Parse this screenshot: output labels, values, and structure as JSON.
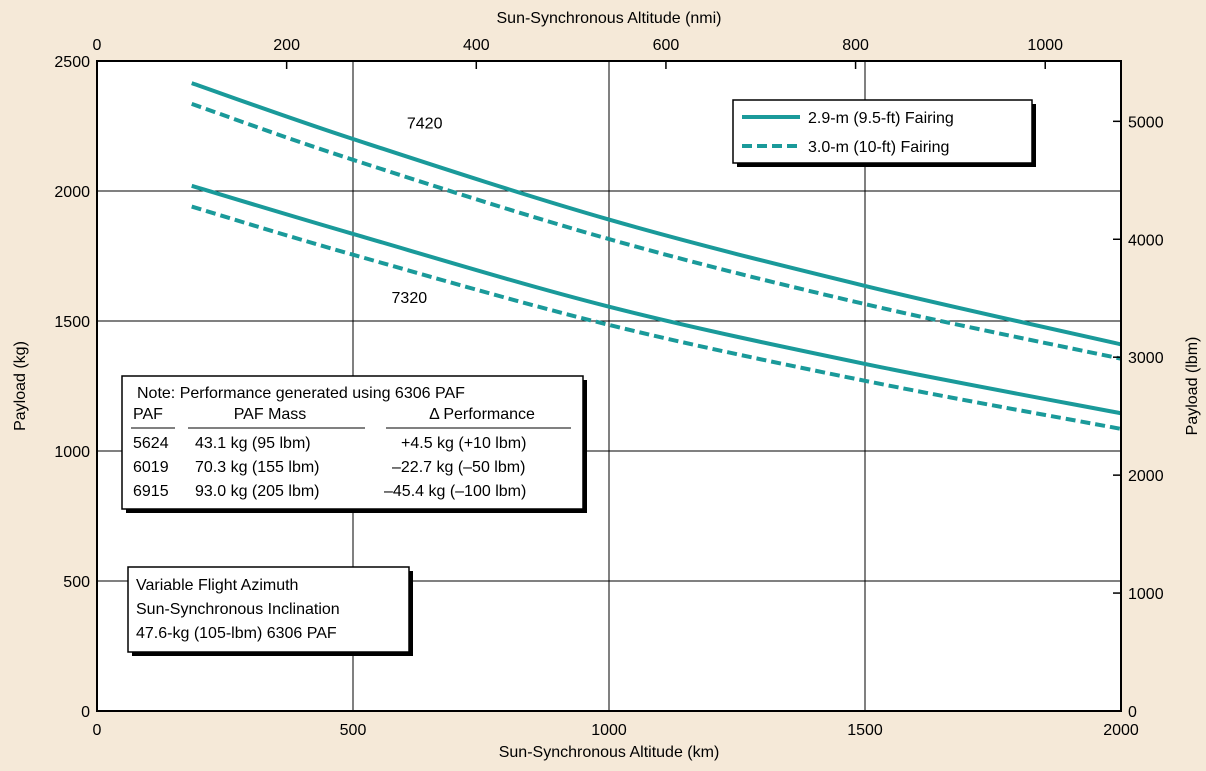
{
  "colors": {
    "background": "#f5e9d8",
    "plot_background": "#ffffff",
    "series": "#1a9a9a",
    "grid": "#000000"
  },
  "chart_data": {
    "type": "line",
    "xlabel": "Sun-Synchronous Altitude (km)",
    "xlabel_top": "Sun-Synchronous Altitude (nmi)",
    "ylabel": "Payload (kg)",
    "ylabel_right": "Payload (lbm)",
    "xlim": [
      0,
      2000
    ],
    "ylim": [
      0,
      2500
    ],
    "x_ticks": [
      "0",
      "500",
      "1000",
      "1500",
      "2000"
    ],
    "y_ticks": [
      "0",
      "500",
      "1000",
      "1500",
      "2000",
      "2500"
    ],
    "x_top_ticks": [
      {
        "value": 0,
        "label": "0"
      },
      {
        "value": 200,
        "label": "200"
      },
      {
        "value": 400,
        "label": "400"
      },
      {
        "value": 600,
        "label": "600"
      },
      {
        "value": 800,
        "label": "800"
      },
      {
        "value": 1000,
        "label": "1000"
      }
    ],
    "y_right_ticks": [
      {
        "value": 0,
        "label": "0"
      },
      {
        "value": 1000,
        "label": "1000"
      },
      {
        "value": 2000,
        "label": "2000"
      },
      {
        "value": 3000,
        "label": "3000"
      },
      {
        "value": 4000,
        "label": "4000"
      },
      {
        "value": 5000,
        "label": "5000"
      }
    ],
    "grid": true,
    "legend_position": "top-right",
    "legend": [
      {
        "label": "2.9-m (9.5-ft) Fairing",
        "style": "solid"
      },
      {
        "label": "3.0-m (10-ft) Fairing",
        "style": "dashed"
      }
    ],
    "series": [
      {
        "vehicle": "7420",
        "fairing": "solid",
        "x": [
          185,
          500,
          1000,
          1500,
          2000
        ],
        "values": [
          2415,
          2200,
          1890,
          1635,
          1410
        ]
      },
      {
        "vehicle": "7420",
        "fairing": "dashed",
        "x": [
          185,
          500,
          1000,
          1500,
          2000
        ],
        "values": [
          2335,
          2120,
          1815,
          1565,
          1355
        ]
      },
      {
        "vehicle": "7320",
        "fairing": "solid",
        "x": [
          185,
          500,
          1000,
          1500,
          2000
        ],
        "values": [
          2020,
          1835,
          1555,
          1335,
          1145
        ]
      },
      {
        "vehicle": "7320",
        "fairing": "dashed",
        "x": [
          185,
          500,
          1000,
          1500,
          2000
        ],
        "values": [
          1940,
          1755,
          1485,
          1270,
          1085
        ]
      }
    ],
    "curve_labels": [
      {
        "text": "7420",
        "x": 640,
        "y": 2240
      },
      {
        "text": "7320",
        "x": 610,
        "y": 1570
      }
    ],
    "note_box": {
      "title": "Note: Performance generated using 6306 PAF",
      "headers": [
        "PAF",
        "PAF Mass",
        "Δ Performance"
      ],
      "rows": [
        [
          "5624",
          "43.1 kg (95 lbm)",
          "+4.5 kg (+10 lbm)"
        ],
        [
          "6019",
          "70.3 kg (155 lbm)",
          "–22.7 kg (–50 lbm)"
        ],
        [
          "6915",
          "93.0 kg (205 lbm)",
          "–45.4 kg (–100 lbm)"
        ]
      ]
    },
    "conditions_box": [
      "Variable Flight Azimuth",
      "Sun-Synchronous Inclination",
      "47.6-kg (105-lbm) 6306 PAF"
    ]
  }
}
